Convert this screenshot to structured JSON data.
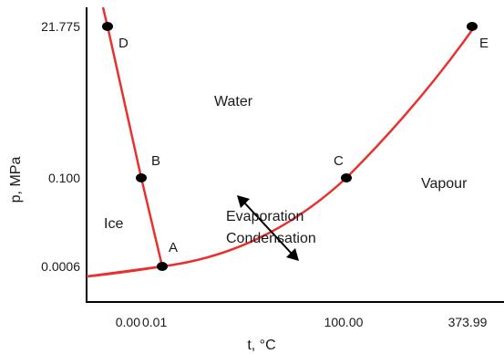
{
  "diagram": {
    "y_axis_label": "p, MPa",
    "x_axis_label": "t, °C",
    "y_ticks": [
      "21.775",
      "0.100",
      "0.0006"
    ],
    "x_ticks": [
      "0.00",
      "0.01",
      "100.00",
      "373.99"
    ],
    "regions": {
      "solid": "Ice",
      "liquid": "Water",
      "gas": "Vapour"
    },
    "process_labels": {
      "evaporation": "Evaporation",
      "condensation": "Condensation"
    },
    "points": {
      "A": "A",
      "B": "B",
      "C": "C",
      "D": "D",
      "E": "E"
    },
    "colors": {
      "phase_boundary": "#e8312f",
      "axes": "#000000",
      "point": "#000000",
      "arrow": "#000000"
    }
  }
}
